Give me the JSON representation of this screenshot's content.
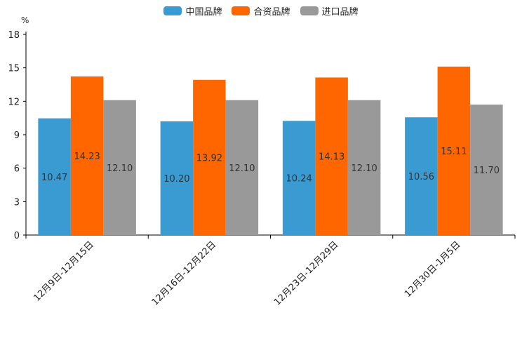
{
  "chart_data": {
    "type": "bar",
    "title": "",
    "xlabel": "",
    "ylabel": "%",
    "ylim": [
      0,
      18
    ],
    "yticks": [
      0,
      3,
      6,
      9,
      12,
      15,
      18
    ],
    "categories": [
      "12月9日-12月15日",
      "12月16日-12月22日",
      "12月23日-12月29日",
      "12月30日-1月5日"
    ],
    "series": [
      {
        "name": "中国品牌",
        "color": "#3a9bd2",
        "values": [
          10.47,
          10.2,
          10.24,
          10.56
        ],
        "labels": [
          "10.47",
          "10.20",
          "10.24",
          "10.56"
        ]
      },
      {
        "name": "合资品牌",
        "color": "#ff6600",
        "values": [
          14.23,
          13.92,
          14.13,
          15.11
        ],
        "labels": [
          "14.23",
          "13.92",
          "14.13",
          "15.11"
        ]
      },
      {
        "name": "进口品牌",
        "color": "#999999",
        "values": [
          12.1,
          12.1,
          12.1,
          11.7
        ],
        "labels": [
          "12.10",
          "12.10",
          "12.10",
          "11.70"
        ]
      }
    ],
    "legend_position": "top-center",
    "grid": false
  }
}
